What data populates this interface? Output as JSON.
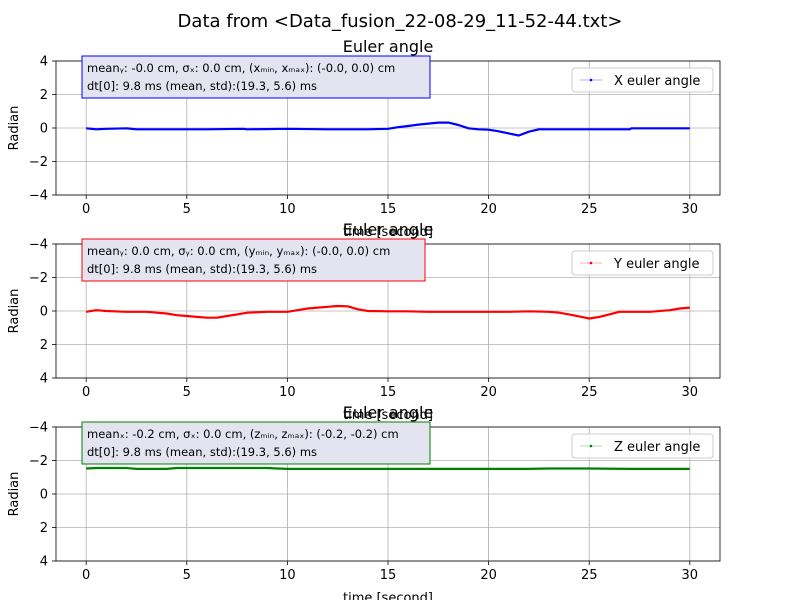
{
  "figure": {
    "suptitle": "Data from <Data_fusion_22-08-29_11-52-44.txt>"
  },
  "chart_data": [
    {
      "type": "line",
      "title": "Euler angle",
      "xlabel": "time [second]",
      "ylabel": "Radian",
      "xlim": [
        -1.5,
        31.5
      ],
      "ylim": [
        -4,
        4
      ],
      "y_inverted": false,
      "grid": true,
      "xticks": [
        "0",
        "5",
        "10",
        "15",
        "20",
        "25",
        "30"
      ],
      "yticks": [
        "4",
        "2",
        "0",
        "−2",
        "−4"
      ],
      "legend": {
        "placement": "top-right"
      },
      "annotation": {
        "line1": "meanᵧ: -0.0 cm, σₓ: 0.0 cm, (xₘᵢₙ, xₘₐₓ): (-0.0, 0.0) cm",
        "line2": "dt[0]: 9.8 ms (mean, std):(19.3, 5.6) ms"
      },
      "series": [
        {
          "name": "X euler angle",
          "color": "#0000ff",
          "x": [
            0,
            0.5,
            1,
            2,
            2.5,
            4,
            6,
            7.8,
            8,
            10,
            12,
            14,
            15,
            15.5,
            16,
            16.5,
            17,
            17.5,
            18,
            18.5,
            19,
            19.5,
            20,
            20.5,
            21,
            21.5,
            22,
            22.5,
            23,
            25,
            27,
            27.1,
            28,
            30
          ],
          "y": [
            -0.02,
            -0.08,
            -0.05,
            -0.02,
            -0.08,
            -0.08,
            -0.08,
            -0.05,
            -0.08,
            -0.05,
            -0.08,
            -0.08,
            -0.05,
            0.05,
            0.12,
            0.2,
            0.26,
            0.32,
            0.32,
            0.18,
            -0.02,
            -0.08,
            -0.1,
            -0.2,
            -0.32,
            -0.45,
            -0.22,
            -0.08,
            -0.08,
            -0.08,
            -0.08,
            -0.02,
            -0.02,
            -0.02
          ]
        }
      ]
    },
    {
      "type": "line",
      "title": "Euler angle",
      "xlabel": "time [second]",
      "ylabel": "Radian",
      "xlim": [
        -1.5,
        31.5
      ],
      "ylim": [
        -4,
        4
      ],
      "y_inverted": true,
      "grid": true,
      "xticks": [
        "0",
        "5",
        "10",
        "15",
        "20",
        "25",
        "30"
      ],
      "yticks": [
        "−4",
        "−2",
        "0",
        "2",
        "4"
      ],
      "legend": {
        "placement": "top-right"
      },
      "annotation": {
        "line1": "meanᵧ: 0.0 cm, σᵧ: 0.0 cm, (yₘᵢₙ, yₘₐₓ): (-0.0, 0.0) cm",
        "line2": "dt[0]: 9.8 ms (mean, std):(19.3, 5.6) ms"
      },
      "series": [
        {
          "name": "Y euler angle",
          "color": "#ff0000",
          "x": [
            0,
            0.5,
            1,
            2,
            3,
            3.5,
            4,
            4.5,
            5,
            5.5,
            6,
            6.5,
            7,
            7.5,
            8,
            9,
            10,
            10.5,
            11,
            11.5,
            12,
            12.5,
            13,
            13.5,
            14,
            15,
            16,
            17,
            18,
            19,
            20,
            21,
            22,
            23,
            23.5,
            24,
            24.5,
            25,
            25.5,
            26,
            26.5,
            27,
            28,
            29,
            29.5,
            30
          ],
          "y": [
            0.05,
            -0.05,
            0.0,
            0.05,
            0.05,
            0.1,
            0.15,
            0.25,
            0.3,
            0.35,
            0.4,
            0.4,
            0.3,
            0.2,
            0.1,
            0.05,
            0.05,
            -0.05,
            -0.15,
            -0.2,
            -0.25,
            -0.3,
            -0.28,
            -0.1,
            0.0,
            0.02,
            0.02,
            0.05,
            0.05,
            0.05,
            0.05,
            0.05,
            0.02,
            0.05,
            0.1,
            0.2,
            0.32,
            0.45,
            0.35,
            0.2,
            0.05,
            0.05,
            0.05,
            -0.05,
            -0.15,
            -0.2
          ]
        }
      ]
    },
    {
      "type": "line",
      "title": "Euler angle",
      "xlabel": "time [second]",
      "ylabel": "Radian",
      "xlim": [
        -1.5,
        31.5
      ],
      "ylim": [
        -4,
        4
      ],
      "y_inverted": true,
      "grid": true,
      "xticks": [
        "0",
        "5",
        "10",
        "15",
        "20",
        "25",
        "30"
      ],
      "yticks": [
        "−4",
        "−2",
        "0",
        "2",
        "4"
      ],
      "legend": {
        "placement": "top-right"
      },
      "annotation": {
        "line1": "meanₓ: -0.2 cm, σₓ: 0.0 cm, (zₘᵢₙ, zₘₐₓ): (-0.2, -0.2) cm",
        "line2": "dt[0]: 9.8 ms (mean, std):(19.3, 5.6) ms"
      },
      "series": [
        {
          "name": "Z euler angle",
          "color": "#008000",
          "x": [
            0,
            0.5,
            2,
            2.5,
            4,
            4.5,
            5,
            6,
            7,
            9,
            9.5,
            10,
            12,
            15,
            20,
            22,
            23,
            25,
            27,
            30
          ],
          "y": [
            -1.52,
            -1.55,
            -1.55,
            -1.5,
            -1.5,
            -1.55,
            -1.55,
            -1.55,
            -1.55,
            -1.55,
            -1.52,
            -1.5,
            -1.5,
            -1.5,
            -1.5,
            -1.5,
            -1.52,
            -1.52,
            -1.5,
            -1.5
          ]
        }
      ]
    }
  ]
}
